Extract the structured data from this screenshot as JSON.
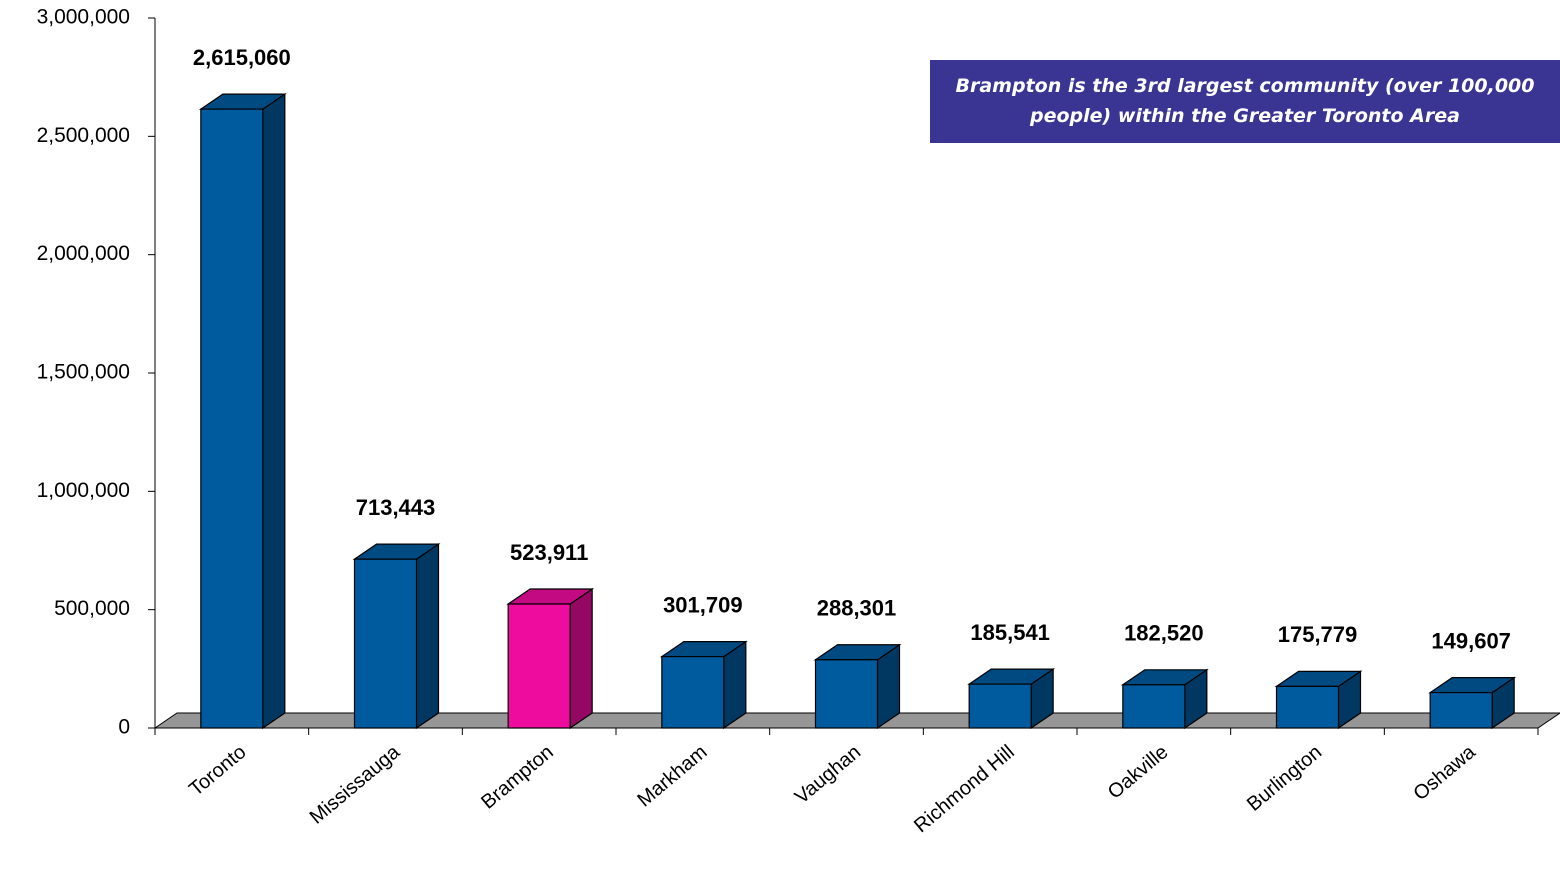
{
  "chart_data": {
    "type": "bar",
    "annotation": "Brampton is the 3rd largest community (over 100,000 people) within the Greater Toronto Area",
    "categories": [
      "Toronto",
      "Mississauga",
      "Brampton",
      "Markham",
      "Vaughan",
      "Richmond Hill",
      "Oakville",
      "Burlington",
      "Oshawa"
    ],
    "values": [
      2615060,
      713443,
      523911,
      301709,
      288301,
      185541,
      182520,
      175779,
      149607
    ],
    "value_labels": [
      "2,615,060",
      "713,443",
      "523,911",
      "301,709",
      "288,301",
      "185,541",
      "182,520",
      "175,779",
      "149,607"
    ],
    "colors": [
      "#005a9e",
      "#005a9e",
      "#ee0c9f",
      "#005a9e",
      "#005a9e",
      "#005a9e",
      "#005a9e",
      "#005a9e",
      "#005a9e"
    ],
    "ylim": [
      0,
      3000000
    ],
    "yticks": [
      0,
      {
        "value": 500000,
        "label": "500,000"
      },
      {
        "value": 1000000,
        "label": "1,000,000"
      },
      {
        "value": 1500000,
        "label": "1,500,000"
      },
      {
        "value": 2000000,
        "label": "2,000,000"
      },
      {
        "value": 2500000,
        "label": "2,500,000"
      },
      {
        "value": 3000000,
        "label": "3,000,000"
      }
    ],
    "grid": false
  }
}
